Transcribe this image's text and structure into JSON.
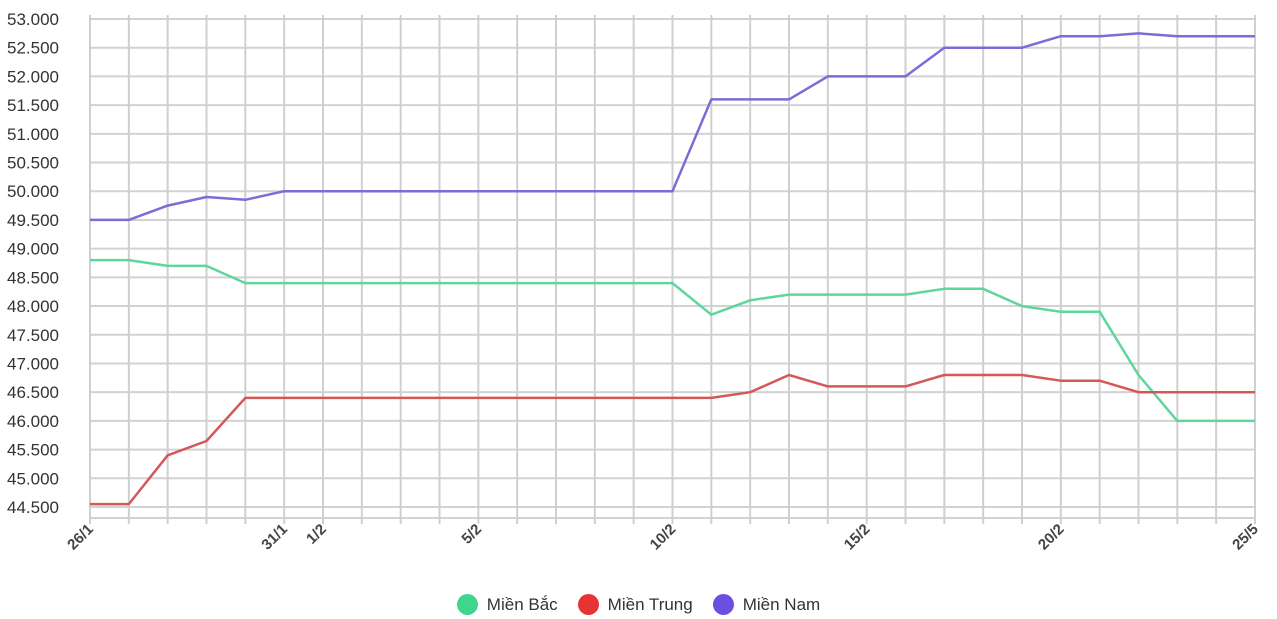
{
  "chart_data": {
    "type": "line",
    "x": [
      "26/1",
      "27/1",
      "28/1",
      "29/1",
      "30/1",
      "31/1",
      "1/2",
      "2/2",
      "3/2",
      "4/2",
      "5/2",
      "6/2",
      "7/2",
      "8/2",
      "9/2",
      "10/2",
      "11/2",
      "12/2",
      "13/2",
      "14/2",
      "15/2",
      "16/2",
      "17/2",
      "18/2",
      "19/2",
      "20/2",
      "21/2",
      "22/2",
      "23/2",
      "24/2",
      "25/5"
    ],
    "x_tick_labels": [
      "26/1",
      "31/1",
      "1/2",
      "5/2",
      "10/2",
      "15/2",
      "20/2",
      "25/5"
    ],
    "y_tick_labels": [
      "53.000",
      "52.500",
      "52.000",
      "51.500",
      "51.000",
      "50.500",
      "50.000",
      "49.500",
      "49.000",
      "48.500",
      "48.000",
      "47.500",
      "47.000",
      "46.500",
      "46.000",
      "45.500",
      "45.000",
      "44.500"
    ],
    "ylim": [
      44500,
      53000
    ],
    "grid": true,
    "legend_position": "bottom",
    "series": [
      {
        "name": "Miền Bắc",
        "color": "#3dd68c",
        "line_color": "#5fd69c",
        "values": [
          48800,
          48800,
          48700,
          48700,
          48400,
          48400,
          48400,
          48400,
          48400,
          48400,
          48400,
          48400,
          48400,
          48400,
          48400,
          48400,
          47850,
          48100,
          48200,
          48200,
          48200,
          48200,
          48300,
          48300,
          48000,
          47900,
          47900,
          46800,
          46000,
          46000,
          46000
        ]
      },
      {
        "name": "Miền Trung",
        "color": "#e63333",
        "line_color": "#d45858",
        "values": [
          44550,
          44550,
          45400,
          45650,
          46400,
          46400,
          46400,
          46400,
          46400,
          46400,
          46400,
          46400,
          46400,
          46400,
          46400,
          46400,
          46400,
          46500,
          46800,
          46600,
          46600,
          46600,
          46800,
          46800,
          46800,
          46700,
          46700,
          46500,
          46500,
          46500,
          46500
        ]
      },
      {
        "name": "Miền Nam",
        "color": "#6b4fe0",
        "line_color": "#7f6ad6",
        "values": [
          49500,
          49500,
          49750,
          49900,
          49850,
          50000,
          50000,
          50000,
          50000,
          50000,
          50000,
          50000,
          50000,
          50000,
          50000,
          50000,
          51600,
          51600,
          51600,
          52000,
          52000,
          52000,
          52500,
          52500,
          52500,
          52700,
          52700,
          52750,
          52700,
          52700,
          52700
        ]
      }
    ]
  }
}
